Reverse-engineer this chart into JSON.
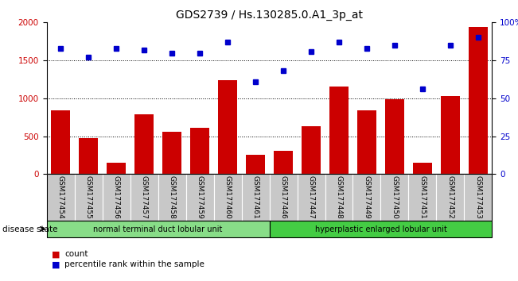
{
  "title": "GDS2739 / Hs.130285.0.A1_3p_at",
  "samples": [
    "GSM177454",
    "GSM177455",
    "GSM177456",
    "GSM177457",
    "GSM177458",
    "GSM177459",
    "GSM177460",
    "GSM177461",
    "GSM177446",
    "GSM177447",
    "GSM177448",
    "GSM177449",
    "GSM177450",
    "GSM177451",
    "GSM177452",
    "GSM177453"
  ],
  "counts": [
    840,
    480,
    155,
    790,
    560,
    610,
    1240,
    260,
    305,
    630,
    1155,
    840,
    990,
    155,
    1030,
    1940
  ],
  "percentiles": [
    83,
    77,
    83,
    82,
    80,
    80,
    87,
    61,
    68,
    81,
    87,
    83,
    85,
    56,
    85,
    90
  ],
  "group1_label": "normal terminal duct lobular unit",
  "group1_count": 8,
  "group2_label": "hyperplastic enlarged lobular unit",
  "group2_count": 8,
  "disease_state_label": "disease state",
  "legend_count_label": "count",
  "legend_pct_label": "percentile rank within the sample",
  "bar_color": "#CC0000",
  "dot_color": "#0000CC",
  "group1_color": "#88DD88",
  "group2_color": "#44CC44",
  "sample_label_bg": "#C8C8C8",
  "ylim_left": [
    0,
    2000
  ],
  "ylim_right": [
    0,
    100
  ],
  "yticks_left": [
    0,
    500,
    1000,
    1500,
    2000
  ],
  "yticks_right": [
    0,
    25,
    50,
    75,
    100
  ],
  "title_fontsize": 10,
  "tick_fontsize": 7.5,
  "label_fontsize": 8
}
